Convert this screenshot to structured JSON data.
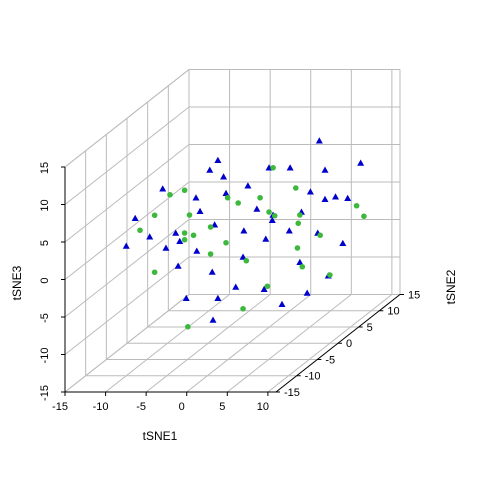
{
  "chart_data": {
    "type": "scatter3d",
    "xlabel": "tSNE1",
    "ylabel": "tSNE2",
    "zlabel": "tSNE3",
    "xlim": [
      -15,
      11
    ],
    "ylim": [
      -15,
      15
    ],
    "zlim": [
      -15,
      15
    ],
    "xticks": [
      -15,
      -10,
      -5,
      0,
      5,
      10
    ],
    "yticks": [
      -15,
      -10,
      -5,
      0,
      5,
      10,
      15
    ],
    "zticks": [
      -15,
      -10,
      -5,
      0,
      5,
      10,
      15
    ],
    "grid": true,
    "series": [
      {
        "color": "#0000cd",
        "marker": "triangle",
        "x": [
          8.7,
          8.7,
          -3.8,
          -10.6,
          -4.8,
          -3.1,
          2.5,
          5.1,
          9.4,
          -8.9,
          -6.5,
          -2.8,
          -0.1,
          7.6,
          9.4,
          5.6,
          7.1,
          1.0,
          3.0,
          6.5,
          -12.2,
          -6.0,
          -4.2,
          -0.6,
          2.1,
          2.9,
          5.0,
          8.5,
          6.5,
          -10.0,
          -10.2,
          -8.7,
          -6.4,
          -4.5,
          -0.7,
          6.3,
          9.8,
          -7.7,
          -3.8,
          -1.6,
          1.9,
          4.1,
          7.2,
          -4.4,
          -8.5,
          -9.0
        ],
        "y": [
          0,
          10,
          0,
          0,
          0,
          0,
          0,
          0,
          0,
          -10,
          0,
          0,
          0,
          0,
          0,
          10,
          10,
          0,
          0,
          0,
          0,
          0,
          0,
          0,
          0,
          0,
          0,
          0,
          10,
          -10,
          0,
          0,
          0,
          0,
          0,
          0,
          0,
          0,
          0,
          0,
          0,
          0,
          0,
          0,
          0,
          0
        ],
        "z": [
          12.0,
          4.7,
          9.4,
          5.6,
          8.1,
          7.2,
          8.4,
          8.4,
          8.1,
          6.0,
          4.4,
          5.0,
          6.0,
          5.2,
          4.2,
          0.2,
          0.0,
          2.9,
          2.1,
          2.5,
          -0.8,
          2.6,
          0.8,
          0.0,
          -1.1,
          1.4,
          0.0,
          -0.3,
          -6.0,
          2.3,
          -2.3,
          -4.7,
          -2.7,
          -5.5,
          -3.5,
          -4.2,
          -6.0,
          -9.0,
          -9.0,
          -7.5,
          -7.8,
          -9.8,
          -8.3,
          -11.9,
          -1.4,
          -0.3
        ]
      },
      {
        "color": "#3cb83c",
        "marker": "circle",
        "x": [
          3.0,
          -9.7,
          -7.9,
          5.8,
          -1.3,
          1.4,
          2.5,
          3.2,
          6.3,
          8.8,
          8.2,
          9.1,
          -2.6,
          -7.3,
          -6.5,
          -8.3,
          -4.7,
          -7.9,
          -7.9,
          -6.8,
          -2.8,
          6.1,
          6.0,
          -6.5,
          -4.7,
          -0.3,
          10.0,
          6.6,
          2.3,
          -0.7,
          -7.5
        ],
        "y": [
          0,
          0,
          0,
          0,
          0,
          0,
          0,
          0,
          0,
          0,
          10,
          10,
          0,
          0,
          -10,
          -10,
          0,
          0,
          0,
          0,
          0,
          0,
          0,
          -10,
          0,
          0,
          0,
          0,
          0,
          0,
          0
        ],
        "z": [
          8.4,
          4.8,
          5.4,
          5.7,
          3.7,
          4.4,
          2.5,
          2.0,
          2.1,
          -0.6,
          -1.0,
          -2.4,
          4.4,
          2.1,
          6.4,
          4.4,
          0.5,
          -0.3,
          -1.2,
          -0.6,
          -1.6,
          1.0,
          -2.3,
          -1.2,
          -3.1,
          -4.0,
          -5.9,
          -4.8,
          -7.4,
          -10.4,
          -12.8
        ]
      }
    ]
  }
}
